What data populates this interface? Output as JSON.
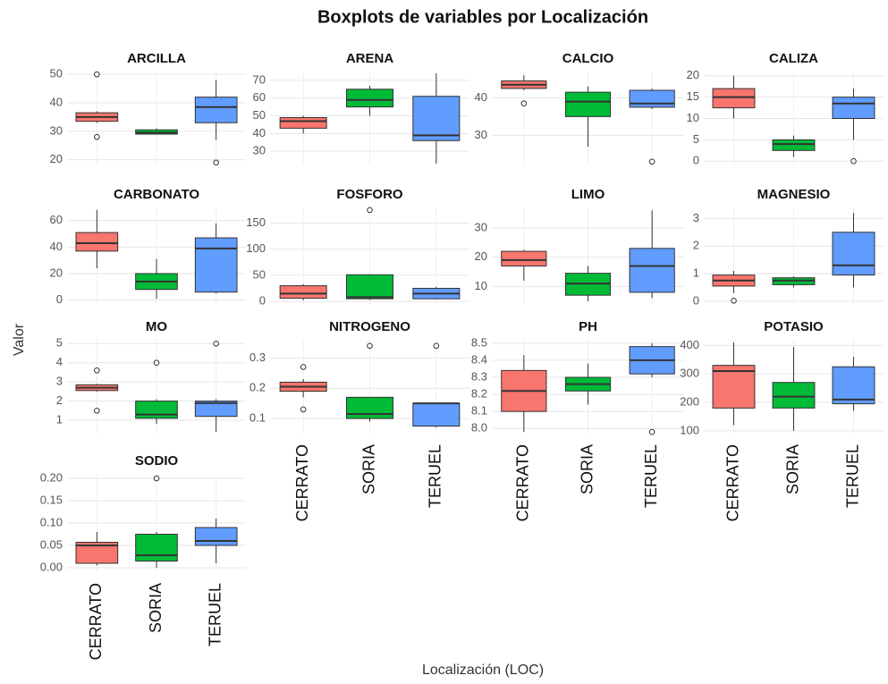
{
  "title": "Boxplots de variables por Localización",
  "xlabel": "Localización (LOC)",
  "ylabel": "Valor",
  "categories": [
    "CERRATO",
    "SORIA",
    "TERUEL"
  ],
  "colors": [
    "#f8766d",
    "#00ba38",
    "#619cff"
  ],
  "chart_data": [
    {
      "type": "box",
      "title": "ARCILLA",
      "ylim": [
        18,
        51
      ],
      "yticks": [
        20,
        30,
        40,
        50
      ],
      "stats": [
        {
          "min": 33,
          "q1": 33.5,
          "median": 35,
          "q3": 36.5,
          "max": 37,
          "outliers": [
            50,
            28
          ]
        },
        {
          "min": 29,
          "q1": 29,
          "median": 29.5,
          "q3": 30.5,
          "max": 31,
          "outliers": []
        },
        {
          "min": 27,
          "q1": 33,
          "median": 38.5,
          "q3": 42,
          "max": 48,
          "outliers": [
            19
          ]
        }
      ]
    },
    {
      "type": "box",
      "title": "ARENA",
      "ylim": [
        22,
        75
      ],
      "yticks": [
        30,
        40,
        50,
        60,
        70
      ],
      "stats": [
        {
          "min": 40,
          "q1": 43,
          "median": 47,
          "q3": 49,
          "max": 50,
          "outliers": []
        },
        {
          "min": 50,
          "q1": 55,
          "median": 59,
          "q3": 65,
          "max": 67,
          "outliers": []
        },
        {
          "min": 23,
          "q1": 36,
          "median": 39,
          "q3": 61,
          "max": 74,
          "outliers": []
        }
      ]
    },
    {
      "type": "box",
      "title": "CALCIO",
      "ylim": [
        22,
        47
      ],
      "yticks": [
        30,
        40
      ],
      "stats": [
        {
          "min": 42,
          "q1": 42.5,
          "median": 43.5,
          "q3": 44.5,
          "max": 46,
          "outliers": [
            38.5
          ]
        },
        {
          "min": 27,
          "q1": 35,
          "median": 39,
          "q3": 41.5,
          "max": 43,
          "outliers": []
        },
        {
          "min": 37,
          "q1": 37.5,
          "median": 38.5,
          "q3": 42,
          "max": 42.5,
          "outliers": [
            23
          ]
        }
      ]
    },
    {
      "type": "box",
      "title": "CALIZA",
      "ylim": [
        -1,
        21
      ],
      "yticks": [
        0,
        5,
        10,
        15,
        20
      ],
      "stats": [
        {
          "min": 10,
          "q1": 12.5,
          "median": 15,
          "q3": 17,
          "max": 20,
          "outliers": []
        },
        {
          "min": 1,
          "q1": 2.5,
          "median": 4,
          "q3": 5,
          "max": 6,
          "outliers": []
        },
        {
          "min": 5,
          "q1": 10,
          "median": 13.5,
          "q3": 15,
          "max": 17,
          "outliers": [
            0
          ]
        }
      ]
    },
    {
      "type": "box",
      "title": "CARBONATO",
      "ylim": [
        -3,
        70
      ],
      "yticks": [
        0,
        20,
        40,
        60
      ],
      "stats": [
        {
          "min": 24,
          "q1": 37,
          "median": 43,
          "q3": 51,
          "max": 68,
          "outliers": []
        },
        {
          "min": 1,
          "q1": 8,
          "median": 14,
          "q3": 20,
          "max": 31,
          "outliers": []
        },
        {
          "min": 5,
          "q1": 6,
          "median": 39,
          "q3": 47,
          "max": 58,
          "outliers": []
        }
      ]
    },
    {
      "type": "box",
      "title": "FOSFORO",
      "ylim": [
        -5,
        180
      ],
      "yticks": [
        0,
        50,
        100,
        150
      ],
      "stats": [
        {
          "min": 2,
          "q1": 6,
          "median": 15,
          "q3": 30,
          "max": 33,
          "outliers": []
        },
        {
          "min": 3,
          "q1": 5,
          "median": 8,
          "q3": 51,
          "max": 52,
          "outliers": [
            175
          ]
        },
        {
          "min": 4,
          "q1": 5,
          "median": 15,
          "q3": 25,
          "max": 28,
          "outliers": []
        }
      ]
    },
    {
      "type": "box",
      "title": "LIMO",
      "ylim": [
        4,
        37
      ],
      "yticks": [
        10,
        20,
        30
      ],
      "stats": [
        {
          "min": 12,
          "q1": 17,
          "median": 19,
          "q3": 22,
          "max": 22.5,
          "outliers": []
        },
        {
          "min": 5,
          "q1": 7,
          "median": 11,
          "q3": 14.5,
          "max": 17,
          "outliers": []
        },
        {
          "min": 6,
          "q1": 8,
          "median": 17,
          "q3": 23,
          "max": 36,
          "outliers": []
        }
      ]
    },
    {
      "type": "box",
      "title": "MAGNESIO",
      "ylim": [
        -0.1,
        3.4
      ],
      "yticks": [
        0,
        1,
        2,
        3
      ],
      "stats": [
        {
          "min": 0.3,
          "q1": 0.55,
          "median": 0.75,
          "q3": 0.95,
          "max": 1.1,
          "outliers": [
            0.02
          ]
        },
        {
          "min": 0.5,
          "q1": 0.6,
          "median": 0.75,
          "q3": 0.85,
          "max": 0.9,
          "outliers": []
        },
        {
          "min": 0.5,
          "q1": 0.95,
          "median": 1.3,
          "q3": 2.5,
          "max": 3.2,
          "outliers": []
        }
      ]
    },
    {
      "type": "box",
      "title": "MO",
      "ylim": [
        0.3,
        5.2
      ],
      "yticks": [
        1,
        2,
        3,
        4,
        5
      ],
      "stats": [
        {
          "min": 2.5,
          "q1": 2.55,
          "median": 2.7,
          "q3": 2.85,
          "max": 2.9,
          "outliers": [
            3.6,
            1.5
          ]
        },
        {
          "min": 0.8,
          "q1": 1.1,
          "median": 1.3,
          "q3": 2.0,
          "max": 2.1,
          "outliers": [
            4.0
          ]
        },
        {
          "min": 0.4,
          "q1": 1.2,
          "median": 1.9,
          "q3": 2.0,
          "max": 2.1,
          "outliers": [
            5.0
          ]
        }
      ]
    },
    {
      "type": "box",
      "title": "NITROGENO",
      "ylim": [
        0.05,
        0.36
      ],
      "yticks": [
        0.1,
        0.2,
        0.3
      ],
      "stats": [
        {
          "min": 0.17,
          "q1": 0.19,
          "median": 0.205,
          "q3": 0.22,
          "max": 0.23,
          "outliers": [
            0.27,
            0.13
          ]
        },
        {
          "min": 0.09,
          "q1": 0.1,
          "median": 0.115,
          "q3": 0.17,
          "max": 0.17,
          "outliers": [
            0.34
          ]
        },
        {
          "min": 0.07,
          "q1": 0.075,
          "median": 0.15,
          "q3": 0.15,
          "max": 0.15,
          "outliers": [
            0.34
          ]
        }
      ]
    },
    {
      "type": "box",
      "title": "PH",
      "ylim": [
        7.97,
        8.52
      ],
      "yticks": [
        {
          "value": 8.0,
          "label": "8.0"
        },
        8.1,
        8.2,
        8.3,
        8.4,
        8.5
      ],
      "stats": [
        {
          "min": 7.98,
          "q1": 8.1,
          "median": 8.22,
          "q3": 8.34,
          "max": 8.43,
          "outliers": []
        },
        {
          "min": 8.14,
          "q1": 8.22,
          "median": 8.26,
          "q3": 8.3,
          "max": 8.38,
          "outliers": []
        },
        {
          "min": 8.3,
          "q1": 8.32,
          "median": 8.4,
          "q3": 8.48,
          "max": 8.5,
          "outliers": [
            7.98
          ]
        }
      ]
    },
    {
      "type": "box",
      "title": "POTASIO",
      "ylim": [
        90,
        420
      ],
      "yticks": [
        100,
        200,
        300,
        400
      ],
      "stats": [
        {
          "min": 120,
          "q1": 180,
          "median": 310,
          "q3": 330,
          "max": 410,
          "outliers": []
        },
        {
          "min": 100,
          "q1": 180,
          "median": 220,
          "q3": 270,
          "max": 395,
          "outliers": []
        },
        {
          "min": 170,
          "q1": 195,
          "median": 210,
          "q3": 325,
          "max": 360,
          "outliers": []
        }
      ]
    },
    {
      "type": "box",
      "title": "SODIO",
      "ylim": [
        -0.01,
        0.21
      ],
      "yticks": [
        {
          "value": 0,
          "label": "0.00"
        },
        0.05,
        {
          "value": 0.1,
          "label": "0.10"
        },
        0.15,
        {
          "value": 0.2,
          "label": "0.20"
        }
      ],
      "stats": [
        {
          "min": 0.005,
          "q1": 0.01,
          "median": 0.05,
          "q3": 0.057,
          "max": 0.08,
          "outliers": []
        },
        {
          "min": 0.0,
          "q1": 0.015,
          "median": 0.028,
          "q3": 0.075,
          "max": 0.08,
          "outliers": [
            0.2
          ]
        },
        {
          "min": 0.01,
          "q1": 0.05,
          "median": 0.06,
          "q3": 0.09,
          "max": 0.11,
          "outliers": []
        }
      ]
    }
  ]
}
